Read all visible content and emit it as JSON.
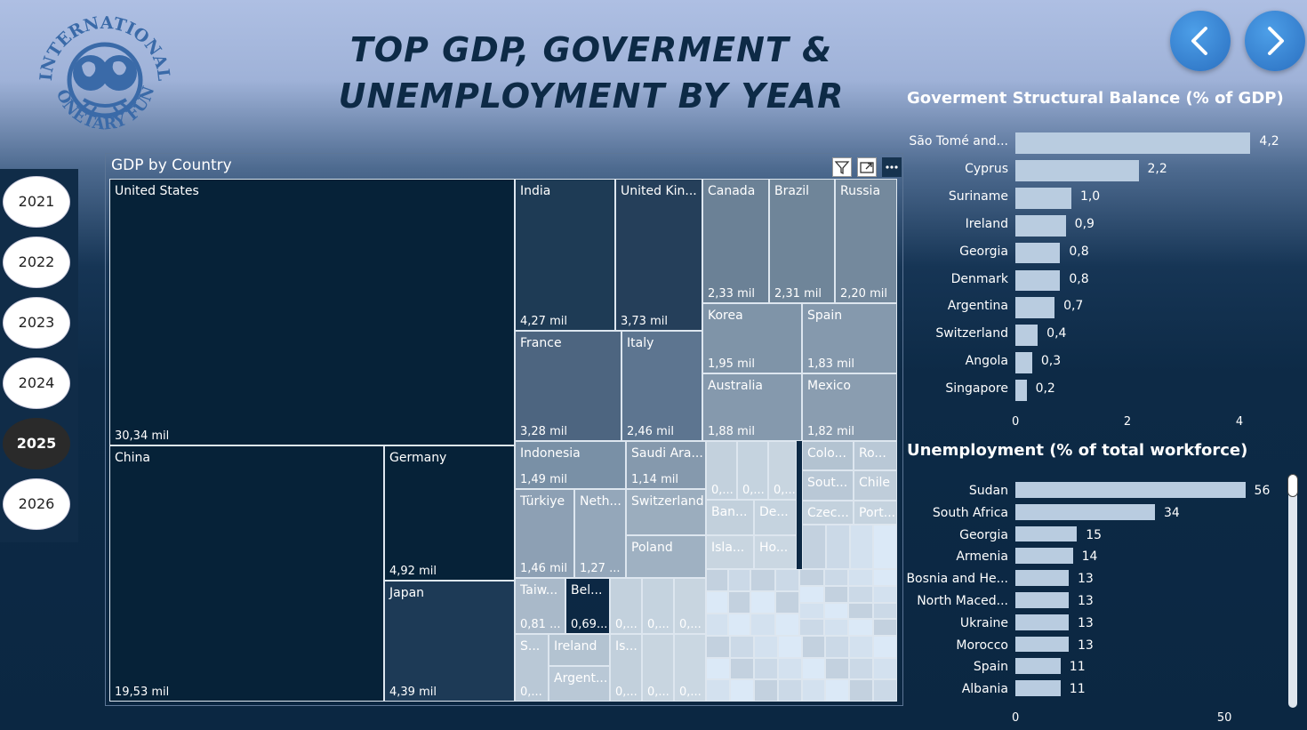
{
  "header": {
    "title_line1": "TOP GDP, GOVERMENT &",
    "title_line2": "UNEMPLOYMENT BY YEAR",
    "logo_text_top": "INTERNATIONAL",
    "logo_text_bottom": "MONETARY FUND",
    "prev_icon": "chevron-left-icon",
    "next_icon": "chevron-right-icon"
  },
  "years": {
    "items": [
      "2021",
      "2022",
      "2023",
      "2024",
      "2025",
      "2026"
    ],
    "selected": "2025"
  },
  "treemap": {
    "title": "GDP by Country",
    "header_icons": [
      "filter-icon",
      "focus-mode-icon",
      "more-options-icon"
    ],
    "cells": [
      {
        "name": "United States",
        "value": "30,34 mil"
      },
      {
        "name": "China",
        "value": "19,53 mil"
      },
      {
        "name": "Germany",
        "value": "4,92 mil"
      },
      {
        "name": "Japan",
        "value": "4,39 mil"
      },
      {
        "name": "India",
        "value": "4,27 mil"
      },
      {
        "name": "United Kin...",
        "value": "3,73 mil"
      },
      {
        "name": "Canada",
        "value": "2,33 mil"
      },
      {
        "name": "Brazil",
        "value": "2,31 mil"
      },
      {
        "name": "Russia",
        "value": "2,20 mil"
      },
      {
        "name": "France",
        "value": "3,28 mil"
      },
      {
        "name": "Italy",
        "value": "2,46 mil"
      },
      {
        "name": "Korea",
        "value": "1,95 mil"
      },
      {
        "name": "Spain",
        "value": "1,83 mil"
      },
      {
        "name": "Australia",
        "value": "1,88 mil"
      },
      {
        "name": "Mexico",
        "value": "1,82 mil"
      },
      {
        "name": "Indonesia",
        "value": "1,49 mil"
      },
      {
        "name": "Saudi Ara...",
        "value": "1,14 mil"
      },
      {
        "name": "Türkiye",
        "value": "1,46 mil"
      },
      {
        "name": "Neth...",
        "value": "1,27 ..."
      },
      {
        "name": "Switzerland",
        "value": ""
      },
      {
        "name": "Poland",
        "value": ""
      },
      {
        "name": "Taiw...",
        "value": "0,81 ..."
      },
      {
        "name": "Bel...",
        "value": "0,69..."
      },
      {
        "name": "S...",
        "value": "0,..."
      },
      {
        "name": "Ireland",
        "value": ""
      },
      {
        "name": "Argent...",
        "value": ""
      },
      {
        "name": "Is...",
        "value": "0,..."
      },
      {
        "name": "",
        "value": "0,..."
      },
      {
        "name": "",
        "value": "0,..."
      },
      {
        "name": "",
        "value": "0,..."
      },
      {
        "name": "",
        "value": "0,..."
      },
      {
        "name": "",
        "value": "0,..."
      },
      {
        "name": "",
        "value": "0,..."
      },
      {
        "name": "",
        "value": "0,..."
      },
      {
        "name": "",
        "value": "0,..."
      },
      {
        "name": "Colo...",
        "value": ""
      },
      {
        "name": "Ro...",
        "value": ""
      },
      {
        "name": "Sout...",
        "value": ""
      },
      {
        "name": "Chile",
        "value": ""
      },
      {
        "name": "Czec...",
        "value": ""
      },
      {
        "name": "Port...",
        "value": ""
      },
      {
        "name": "Ban...",
        "value": ""
      },
      {
        "name": "De...",
        "value": ""
      },
      {
        "name": "Isla...",
        "value": ""
      },
      {
        "name": "Ho...",
        "value": ""
      }
    ]
  },
  "chart_data": [
    {
      "type": "bar",
      "title": "Goverment Structural Balance (% of GDP)",
      "orientation": "horizontal",
      "categories": [
        "São Tomé and...",
        "Cyprus",
        "Suriname",
        "Ireland",
        "Georgia",
        "Denmark",
        "Argentina",
        "Switzerland",
        "Angola",
        "Singapore"
      ],
      "values": [
        4.2,
        2.2,
        1.0,
        0.9,
        0.8,
        0.8,
        0.7,
        0.4,
        0.3,
        0.2
      ],
      "labels": [
        "4,2",
        "2,2",
        "1,0",
        "0,9",
        "0,8",
        "0,8",
        "0,7",
        "0,4",
        "0,3",
        "0,2"
      ],
      "xlim": [
        0,
        4.4
      ],
      "xticks": [
        "0",
        "2",
        "4"
      ],
      "xtick_values": [
        0,
        2,
        4
      ],
      "color": "#b9cce0"
    },
    {
      "type": "bar",
      "title": "Unemployment (% of total workforce)",
      "orientation": "horizontal",
      "categories": [
        "Sudan",
        "South Africa",
        "Georgia",
        "Armenia",
        "Bosnia and He...",
        "North Maced...",
        "Ukraine",
        "Morocco",
        "Spain",
        "Albania"
      ],
      "values": [
        56,
        34,
        15,
        14,
        13,
        13,
        13,
        13,
        11,
        11
      ],
      "labels": [
        "56",
        "34",
        "15",
        "14",
        "13",
        "13",
        "13",
        "13",
        "11",
        "11"
      ],
      "xlim": [
        0,
        60
      ],
      "xticks": [
        "0",
        "50"
      ],
      "xtick_values": [
        0,
        50
      ],
      "color": "#b9cce0"
    }
  ]
}
